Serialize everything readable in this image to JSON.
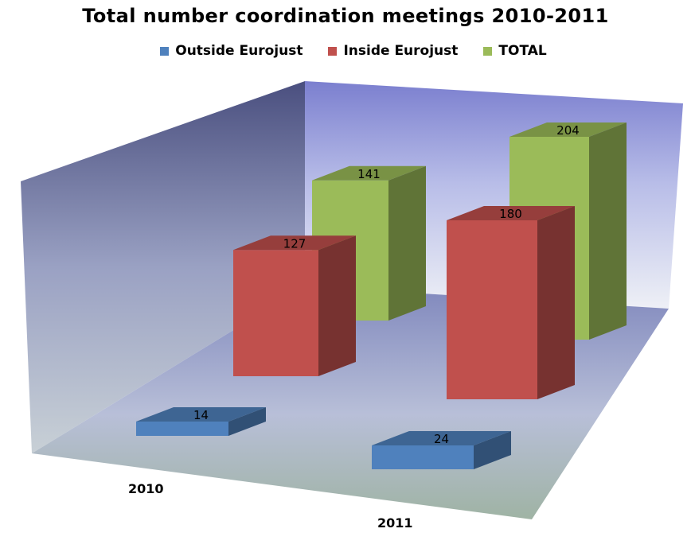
{
  "chart_data": {
    "type": "bar",
    "title": "Total number coordination meetings 2010-2011",
    "categories": [
      "2010",
      "2011"
    ],
    "series": [
      {
        "name": "Outside Eurojust",
        "values": [
          14,
          24
        ],
        "color": "#4f81bd"
      },
      {
        "name": "Inside Eurojust",
        "values": [
          127,
          180
        ],
        "color": "#c0504d"
      },
      {
        "name": "TOTAL",
        "values": [
          141,
          204
        ],
        "color": "#9bbb59"
      }
    ],
    "data_labels": true,
    "legend_position": "top",
    "three_d": true,
    "xlabel": "",
    "ylabel": ""
  }
}
